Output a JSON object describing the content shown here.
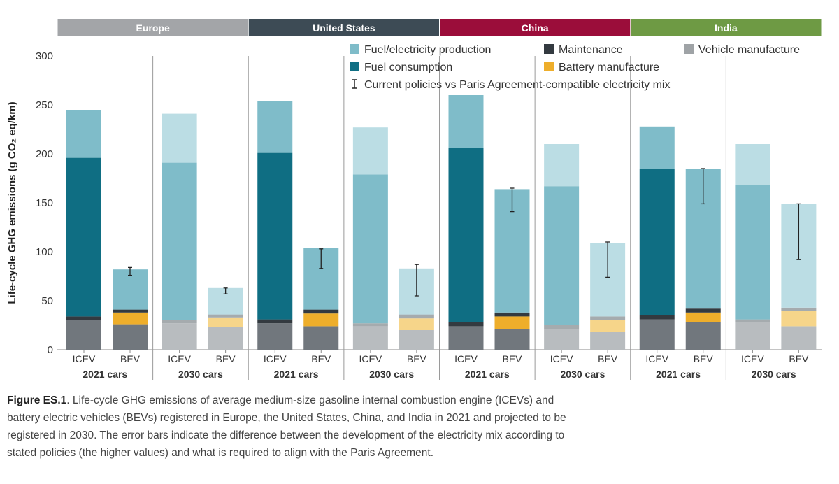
{
  "chart_data": {
    "type": "bar",
    "stacked": true,
    "ylabel": "Life-cycle GHG emissions (g CO₂ eq/km)",
    "ylim": [
      0,
      300
    ],
    "yticks": [
      0,
      50,
      100,
      150,
      200,
      250,
      300
    ],
    "regions": [
      {
        "name": "Europe",
        "color": "#a3a5a8"
      },
      {
        "name": "United States",
        "color": "#3d4b55"
      },
      {
        "name": "China",
        "color": "#9b0d3a"
      },
      {
        "name": "India",
        "color": "#6e9a44"
      }
    ],
    "group_labels": [
      "2021 cars",
      "2030 cars",
      "2021 cars",
      "2030 cars",
      "2021 cars",
      "2030 cars",
      "2021 cars",
      "2030 cars"
    ],
    "categories": [
      "ICEV",
      "BEV",
      "ICEV",
      "BEV",
      "ICEV",
      "BEV",
      "ICEV",
      "BEV",
      "ICEV",
      "BEV",
      "ICEV",
      "BEV",
      "ICEV",
      "BEV",
      "ICEV",
      "BEV"
    ],
    "future": [
      false,
      false,
      true,
      true,
      false,
      false,
      true,
      true,
      false,
      false,
      true,
      true,
      false,
      false,
      true,
      true
    ],
    "series": [
      {
        "name": "Vehicle manufacture",
        "color": "#71777d",
        "light": "#b8bcbf",
        "values": [
          30,
          26,
          27,
          23,
          27,
          24,
          24,
          20,
          24,
          21,
          21,
          18,
          31,
          28,
          28,
          24
        ]
      },
      {
        "name": "Battery manufacture",
        "color": "#eeae2b",
        "light": "#f6d58a",
        "values": [
          0,
          12,
          0,
          10,
          0,
          13,
          0,
          12,
          0,
          13,
          0,
          12,
          0,
          10,
          0,
          16
        ]
      },
      {
        "name": "Maintenance",
        "color": "#333a40",
        "light": "#a5abae",
        "values": [
          4,
          3,
          3,
          3,
          4,
          4,
          3,
          4,
          4,
          4,
          4,
          4,
          4,
          4,
          3,
          3
        ]
      },
      {
        "name": "Fuel consumption",
        "color": "#0f6e83",
        "light": "#7fbcc9",
        "values": [
          162,
          0,
          161,
          0,
          170,
          0,
          152,
          0,
          178,
          0,
          142,
          0,
          150,
          0,
          137,
          0
        ]
      },
      {
        "name": "Fuel/electricity production",
        "color": "#7fbcc9",
        "light": "#bbdde4",
        "values": [
          49,
          41,
          50,
          27,
          53,
          63,
          48,
          47,
          54,
          126,
          43,
          75,
          43,
          143,
          42,
          106
        ]
      }
    ],
    "error_bars": [
      null,
      [
        76,
        84
      ],
      null,
      [
        57,
        63
      ],
      null,
      [
        83,
        103
      ],
      null,
      [
        55,
        87
      ],
      null,
      [
        141,
        165
      ],
      null,
      [
        74,
        110
      ],
      null,
      [
        149,
        185
      ],
      null,
      [
        92,
        149
      ]
    ],
    "legend": {
      "placement": "top-right",
      "items": [
        {
          "label": "Fuel/electricity production",
          "color": "#7fbcc9",
          "symbol": "square"
        },
        {
          "label": "Maintenance",
          "color": "#333a40",
          "symbol": "square"
        },
        {
          "label": "Vehicle manufacture",
          "color": "#9fa3a6",
          "symbol": "square"
        },
        {
          "label": "Fuel consumption",
          "color": "#0f6e83",
          "symbol": "square"
        },
        {
          "label": "Battery manufacture",
          "color": "#eeae2b",
          "symbol": "square"
        },
        {
          "label": "Current policies vs Paris Agreement-compatible electricity mix",
          "color": "#222222",
          "symbol": "errorbar"
        }
      ]
    },
    "grid": false
  },
  "caption": {
    "bold": "Figure ES.1",
    "text": ". Life-cycle GHG emissions of average medium-size gasoline internal combustion engine (ICEVs) and battery electric vehicles (BEVs) registered in Europe, the United States, China, and India in 2021 and projected to be registered in 2030. The error bars indicate the difference between the development of the electricity mix according to stated policies (the higher values) and what is required to align with the Paris Agreement."
  }
}
